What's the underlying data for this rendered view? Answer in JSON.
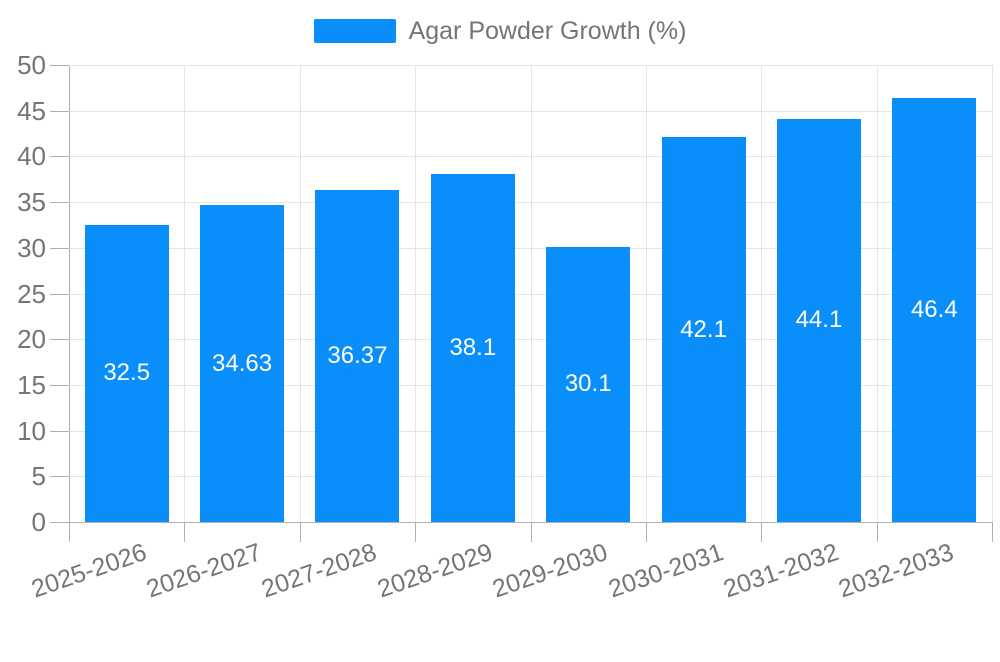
{
  "chart_data": {
    "type": "bar",
    "legend": "Agar Powder Growth (%)",
    "series_name": "Agar Powder Growth (%)",
    "categories": [
      "2025-2026",
      "2026-2027",
      "2027-2028",
      "2028-2029",
      "2029-2030",
      "2030-2031",
      "2031-2032",
      "2032-2033"
    ],
    "values": [
      32.5,
      34.63,
      36.37,
      38.1,
      30.1,
      42.1,
      44.1,
      46.4
    ],
    "value_labels": [
      "32.5",
      "34.63",
      "36.37",
      "38.1",
      "30.1",
      "42.1",
      "44.1",
      "46.4"
    ],
    "yticks": [
      0,
      5,
      10,
      15,
      20,
      25,
      30,
      35,
      40,
      45,
      50
    ],
    "ylim": [
      0,
      50
    ],
    "grid": "on",
    "legend_position": "top-center",
    "x_label_rotation_deg": -19,
    "value_label_position": "inside-center"
  },
  "colors": {
    "bar": "#0a8ef9",
    "axis_text": "#757575",
    "grid_line": "#e5e5e5",
    "axis_line": "#b0b0b0",
    "bar_label_text": "#ffffff",
    "background": "#ffffff"
  }
}
